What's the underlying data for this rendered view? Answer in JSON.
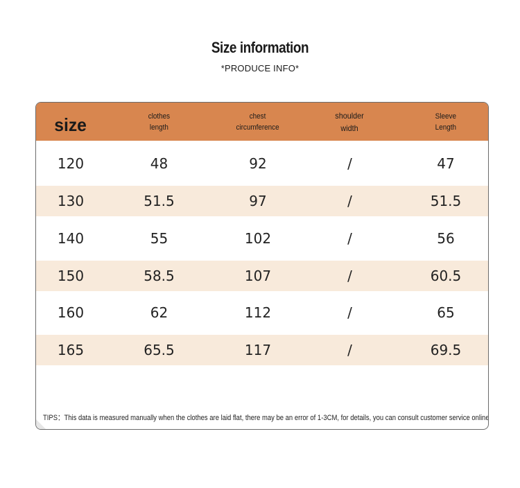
{
  "title": "Size information",
  "subtitle": "*PRODUCE INFO*",
  "table": {
    "headers": {
      "size": "size",
      "clothes_length": [
        "clothes",
        "length"
      ],
      "chest": [
        "chest",
        "circumference"
      ],
      "shoulder": [
        "shoulder",
        "width"
      ],
      "sleeve": [
        "Sleeve",
        "Length"
      ]
    },
    "rows": [
      [
        "120",
        "48",
        "92",
        "/",
        "47"
      ],
      [
        "130",
        "51.5",
        "97",
        "/",
        "51.5"
      ],
      [
        "140",
        "55",
        "102",
        "/",
        "56"
      ],
      [
        "150",
        "58.5",
        "107",
        "/",
        "60.5"
      ],
      [
        "160",
        "62",
        "112",
        "/",
        "65"
      ],
      [
        "165",
        "65.5",
        "117",
        "/",
        "69.5"
      ]
    ]
  },
  "tips": "TIPS：This data is measured manually when the clothes are laid flat, there may be an error of 1-3CM, for details, you can consult customer service online",
  "colors": {
    "header": "#d8864f",
    "alt_row": "#f8eadb",
    "border": "#6b6b6b"
  }
}
